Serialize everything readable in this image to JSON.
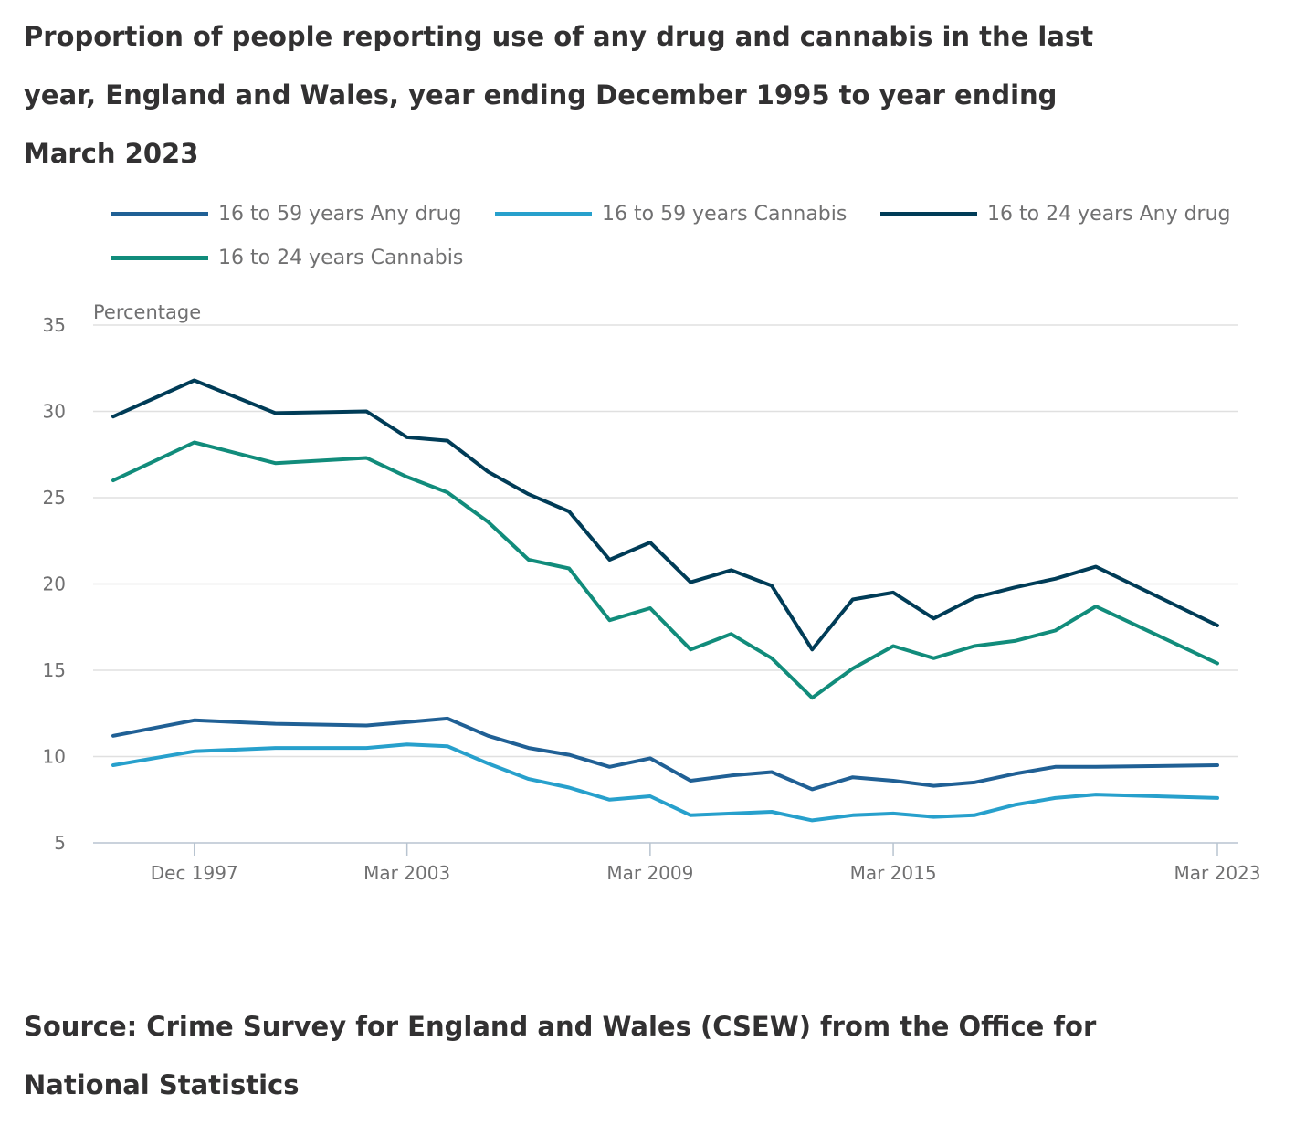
{
  "title": "Proportion of people reporting use of any drug and cannabis in the last year, England and Wales, year ending December 1995 to year ending March 2023",
  "source": "Source: Crime Survey for England and Wales (CSEW) from the Office for National Statistics",
  "chart_data": {
    "type": "line",
    "ylabel": "Percentage",
    "ylim": [
      5,
      35
    ],
    "yticks": [
      5,
      10,
      15,
      20,
      25,
      30,
      35
    ],
    "grid": true,
    "legend_position": "top",
    "x": [
      "Dec 1995",
      "Dec 1997",
      "Dec 1999",
      "Mar 2002",
      "Mar 2003",
      "Mar 2004",
      "Mar 2005",
      "Mar 2006",
      "Mar 2007",
      "Mar 2008",
      "Mar 2009",
      "Mar 2010",
      "Mar 2011",
      "Mar 2012",
      "Mar 2013",
      "Mar 2014",
      "Mar 2015",
      "Mar 2016",
      "Mar 2017",
      "Mar 2018",
      "Mar 2019",
      "Mar 2020",
      "Mar 2023"
    ],
    "xticks": [
      "Dec 1997",
      "Mar 2003",
      "Mar 2009",
      "Mar 2015",
      "Mar 2023"
    ],
    "series": [
      {
        "name": "16 to 59 years Any drug",
        "color": "#206095",
        "values": [
          11.2,
          12.1,
          11.9,
          11.8,
          12.0,
          12.2,
          11.2,
          10.5,
          10.1,
          9.4,
          9.9,
          8.6,
          8.9,
          9.1,
          8.1,
          8.8,
          8.6,
          8.3,
          8.5,
          9.0,
          9.4,
          9.4,
          9.5
        ]
      },
      {
        "name": "16 to 59 years Cannabis",
        "color": "#27a0cc",
        "values": [
          9.5,
          10.3,
          10.5,
          10.5,
          10.7,
          10.6,
          9.6,
          8.7,
          8.2,
          7.5,
          7.7,
          6.6,
          6.7,
          6.8,
          6.3,
          6.6,
          6.7,
          6.5,
          6.6,
          7.2,
          7.6,
          7.8,
          7.6
        ]
      },
      {
        "name": "16 to 24 years Any drug",
        "color": "#003c57",
        "values": [
          29.7,
          31.8,
          29.9,
          30.0,
          28.5,
          28.3,
          26.5,
          25.2,
          24.2,
          21.4,
          22.4,
          20.1,
          20.8,
          19.9,
          16.2,
          19.1,
          19.5,
          18.0,
          19.2,
          19.8,
          20.3,
          21.0,
          17.6
        ]
      },
      {
        "name": "16 to 24 years Cannabis",
        "color": "#118c7b",
        "values": [
          26.0,
          28.2,
          27.0,
          27.3,
          26.2,
          25.3,
          23.6,
          21.4,
          20.9,
          17.9,
          18.6,
          16.2,
          17.1,
          15.7,
          13.4,
          15.1,
          16.4,
          15.7,
          16.4,
          16.7,
          17.3,
          18.7,
          15.4
        ]
      }
    ]
  }
}
